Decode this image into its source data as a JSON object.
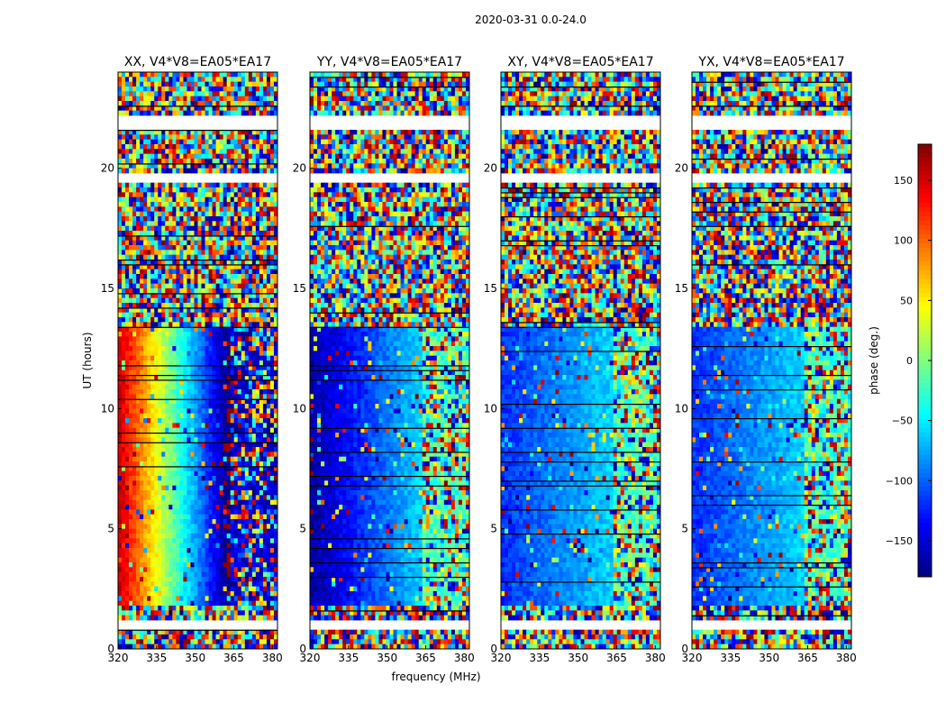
{
  "figure": {
    "suptitle": "2020-03-31 0.0-24.0",
    "xlabel": "frequency (MHz)",
    "ylabel": "UT (hours)",
    "colorbar_label": "phase (deg.)"
  },
  "chart_data": {
    "type": "heatmap",
    "title": "2020-03-31 0.0-24.0",
    "xlabel": "frequency (MHz)",
    "ylabel": "UT (hours)",
    "xlim": [
      320,
      382
    ],
    "ylim": [
      0,
      24
    ],
    "xticks": [
      320,
      335,
      350,
      365,
      380
    ],
    "yticks": [
      0,
      5,
      10,
      15,
      20
    ],
    "colorbar": {
      "label": "phase (deg.)",
      "range": [
        -180,
        180
      ],
      "ticks": [
        150,
        100,
        50,
        0,
        -50,
        -100,
        -150
      ],
      "tick_labels": [
        "150",
        "100",
        "50",
        "0",
        "−50",
        "−100",
        "−150"
      ],
      "colormap": "jet"
    },
    "panels": [
      {
        "title": "XX, V4*V8=EA05*EA17",
        "polarization": "XX",
        "low_band_phase": [
          160,
          -180
        ],
        "high_band_phase": -150
      },
      {
        "title": "YY, V4*V8=EA05*EA17",
        "polarization": "YY",
        "low_band_phase": [
          -170,
          -60
        ],
        "high_band_phase": -20
      },
      {
        "title": "XY, V4*V8=EA05*EA17",
        "polarization": "XY",
        "low_band_phase": [
          -120,
          -60
        ],
        "high_band_phase": -20
      },
      {
        "title": "YX, V4*V8=EA05*EA17",
        "polarization": "YX",
        "low_band_phase": [
          -120,
          -60
        ],
        "high_band_phase": -20
      }
    ],
    "band_edge_mhz": 363,
    "coherent_intervals_ut": [
      [
        1.7,
        13.4
      ]
    ],
    "flagged_gaps_ut": [
      [
        0.8,
        1.3
      ],
      [
        19.5,
        19.8
      ],
      [
        21.6,
        22.1
      ]
    ],
    "grid": false
  }
}
